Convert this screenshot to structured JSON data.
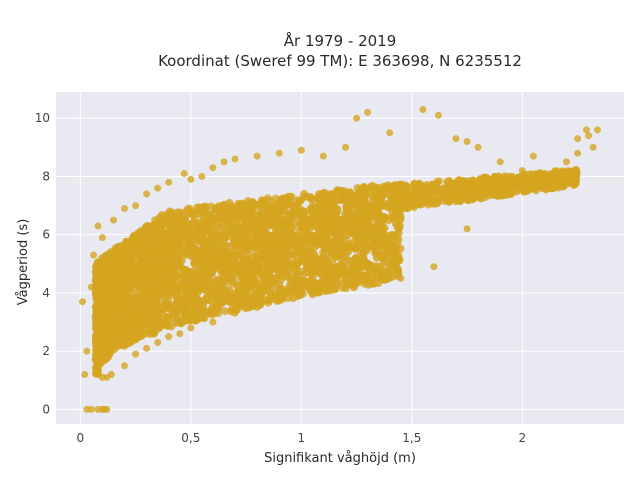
{
  "chart_data": {
    "type": "scatter",
    "title_line1": "År 1979 - 2019",
    "title_line2": "Koordinat (Sweref 99 TM): E 363698, N 6235512",
    "xlabel": "Signifikant våghöjd (m)",
    "ylabel": "Vågperiod (s)",
    "xlim": [
      -0.11,
      2.46
    ],
    "ylim": [
      -0.5,
      10.9
    ],
    "x_ticks": [
      0,
      0.5,
      1,
      1.5,
      2
    ],
    "x_tick_labels": [
      "0",
      "0,5",
      "1",
      "1,5",
      "2"
    ],
    "y_ticks": [
      0,
      2,
      4,
      6,
      8,
      10
    ],
    "y_tick_labels": [
      "0",
      "2",
      "4",
      "6",
      "8",
      "10"
    ],
    "grid": true,
    "plot_background": "#e9e9f2",
    "marker_color": "#d4a520",
    "points": [
      [
        0.03,
        0.0
      ],
      [
        0.05,
        0.0
      ],
      [
        0.08,
        0.0
      ],
      [
        0.1,
        0.0
      ],
      [
        0.11,
        0.0
      ],
      [
        0.12,
        0.0
      ],
      [
        0.01,
        3.7
      ],
      [
        0.02,
        1.2
      ],
      [
        0.03,
        2.0
      ],
      [
        0.05,
        4.2
      ],
      [
        0.06,
        5.3
      ],
      [
        0.07,
        3.5
      ],
      [
        0.08,
        1.2
      ],
      [
        0.08,
        6.3
      ],
      [
        0.1,
        1.1
      ],
      [
        0.1,
        5.9
      ],
      [
        0.12,
        1.1
      ],
      [
        0.14,
        1.2
      ],
      [
        0.15,
        6.5
      ],
      [
        0.2,
        1.5
      ],
      [
        0.2,
        6.9
      ],
      [
        0.25,
        1.9
      ],
      [
        0.25,
        7.0
      ],
      [
        0.3,
        2.1
      ],
      [
        0.3,
        7.4
      ],
      [
        0.35,
        2.3
      ],
      [
        0.35,
        7.6
      ],
      [
        0.4,
        2.5
      ],
      [
        0.4,
        7.8
      ],
      [
        0.45,
        2.6
      ],
      [
        0.47,
        8.1
      ],
      [
        0.5,
        2.8
      ],
      [
        0.5,
        7.9
      ],
      [
        0.55,
        8.0
      ],
      [
        0.6,
        3.0
      ],
      [
        0.6,
        8.3
      ],
      [
        0.65,
        8.5
      ],
      [
        0.7,
        3.3
      ],
      [
        0.7,
        8.6
      ],
      [
        0.8,
        3.5
      ],
      [
        0.8,
        8.7
      ],
      [
        0.9,
        3.8
      ],
      [
        0.9,
        8.8
      ],
      [
        1.0,
        4.0
      ],
      [
        1.0,
        8.9
      ],
      [
        1.1,
        4.2
      ],
      [
        1.1,
        8.7
      ],
      [
        1.2,
        9.0
      ],
      [
        1.2,
        4.5
      ],
      [
        1.25,
        10.0
      ],
      [
        1.3,
        10.2
      ],
      [
        1.4,
        9.5
      ],
      [
        1.45,
        4.5
      ],
      [
        1.55,
        10.3
      ],
      [
        1.6,
        4.9
      ],
      [
        1.62,
        10.1
      ],
      [
        1.7,
        9.3
      ],
      [
        1.75,
        9.2
      ],
      [
        1.75,
        6.2
      ],
      [
        1.8,
        9.0
      ],
      [
        1.9,
        8.5
      ],
      [
        2.0,
        8.2
      ],
      [
        2.0,
        7.6
      ],
      [
        2.05,
        8.7
      ],
      [
        2.1,
        8.1
      ],
      [
        2.15,
        8.0
      ],
      [
        2.2,
        8.5
      ],
      [
        2.25,
        8.8
      ],
      [
        2.25,
        9.3
      ],
      [
        2.29,
        9.6
      ],
      [
        2.3,
        9.4
      ],
      [
        2.32,
        9.0
      ],
      [
        2.34,
        9.6
      ]
    ]
  }
}
